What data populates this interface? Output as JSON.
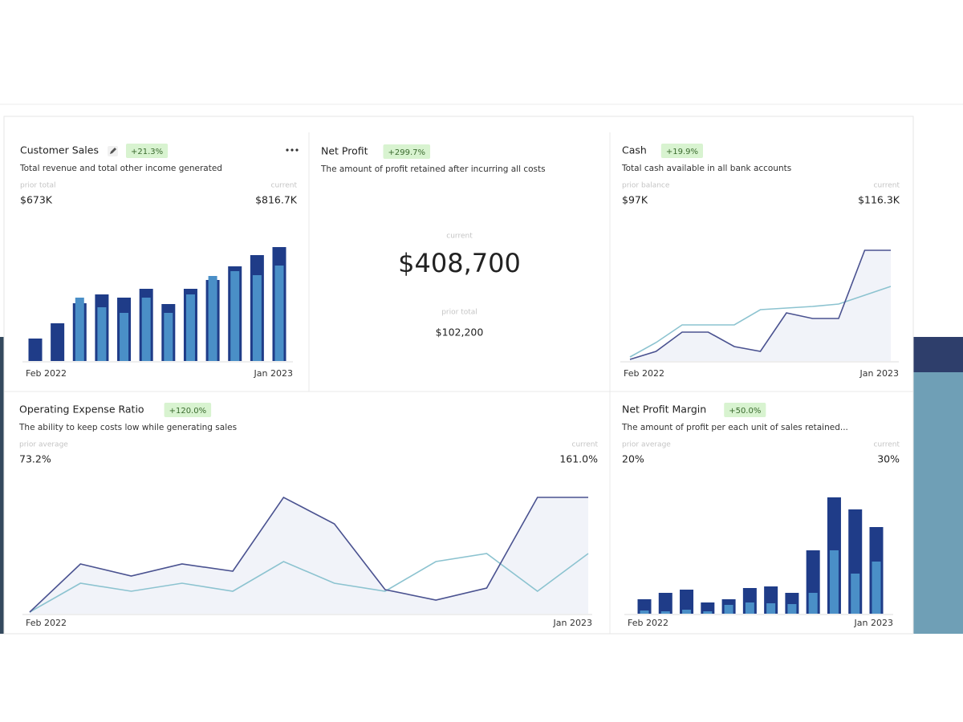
{
  "cards": [
    {
      "title": "Customer Sales",
      "badge": "+21.3%",
      "description": "Total revenue and total other income generated",
      "prior_label": "prior total",
      "prior_value": "$673K",
      "current_label": "current",
      "current_value": "$816.7K",
      "start_label": "Feb 2022",
      "end_label": "Jan 2023",
      "chart": {
        "type": "bar",
        "series": [
          {
            "color": "#1f3c88",
            "values": [
              28,
              47,
              72,
              83,
              79,
              90,
              71,
              90,
              101,
              118,
              132,
              142
            ]
          },
          {
            "color": "#4a8fc7",
            "values": [
              0,
              0,
              79,
              67,
              60,
              79,
              60,
              83,
              106,
              112,
              107,
              119
            ]
          }
        ]
      }
    },
    {
      "title": "Net Profit",
      "badge": "+299.7%",
      "description": "The amount of profit retained after incurring all costs",
      "current_label": "current",
      "current_value": "$408,700",
      "prior_label": "prior total",
      "prior_value": "$102,200"
    },
    {
      "title": "Cash",
      "badge": "+19.9%",
      "description": "Total cash available in all bank accounts",
      "prior_label": "prior balance",
      "prior_value": "$97K",
      "current_label": "current",
      "current_value": "$116.3K",
      "start_label": "Feb 2022",
      "end_label": "Jan 2023",
      "chart": {
        "type": "line",
        "series": [
          {
            "color": "#4a5290",
            "values": [
              2,
              12,
              36,
              36,
              18,
              12,
              60,
              53,
              53,
              138,
              138
            ]
          },
          {
            "color": "#8cc3d0",
            "values": [
              5,
              23,
              45,
              45,
              45,
              64,
              66,
              68,
              71,
              82,
              93
            ]
          }
        ]
      }
    },
    {
      "title": "Operating Expense Ratio",
      "badge": "+120.0%",
      "description": "The ability to keep costs low while generating sales",
      "prior_label": "prior average",
      "prior_value": "73.2%",
      "current_label": "current",
      "current_value": "161.0%",
      "start_label": "Feb 2022",
      "end_label": "Jan 2023",
      "chart": {
        "type": "line",
        "series": [
          {
            "color": "#4a5290",
            "values": [
              2,
              62,
              47,
              62,
              53,
              145,
              112,
              30,
              17,
              32,
              145,
              145
            ]
          },
          {
            "color": "#8cc3d0",
            "values": [
              2,
              38,
              28,
              38,
              28,
              65,
              38,
              28,
              65,
              75,
              28,
              75
            ]
          }
        ]
      }
    },
    {
      "title": "Net Profit Margin",
      "badge": "+50.0%",
      "description": "The amount of profit per each unit of sales retained...",
      "prior_label": "prior average",
      "prior_value": "20%",
      "current_label": "current",
      "current_value": "30%",
      "start_label": "Feb 2022",
      "end_label": "Jan 2023",
      "chart": {
        "type": "bar",
        "series": [
          {
            "color": "#1f3c88",
            "values": [
              18,
              26,
              30,
              14,
              18,
              32,
              34,
              26,
              79,
              145,
              130,
              108
            ]
          },
          {
            "color": "#4a8fc7",
            "values": [
              4,
              3,
              5,
              3,
              11,
              14,
              13,
              12,
              26,
              79,
              50,
              65
            ]
          }
        ]
      }
    }
  ]
}
